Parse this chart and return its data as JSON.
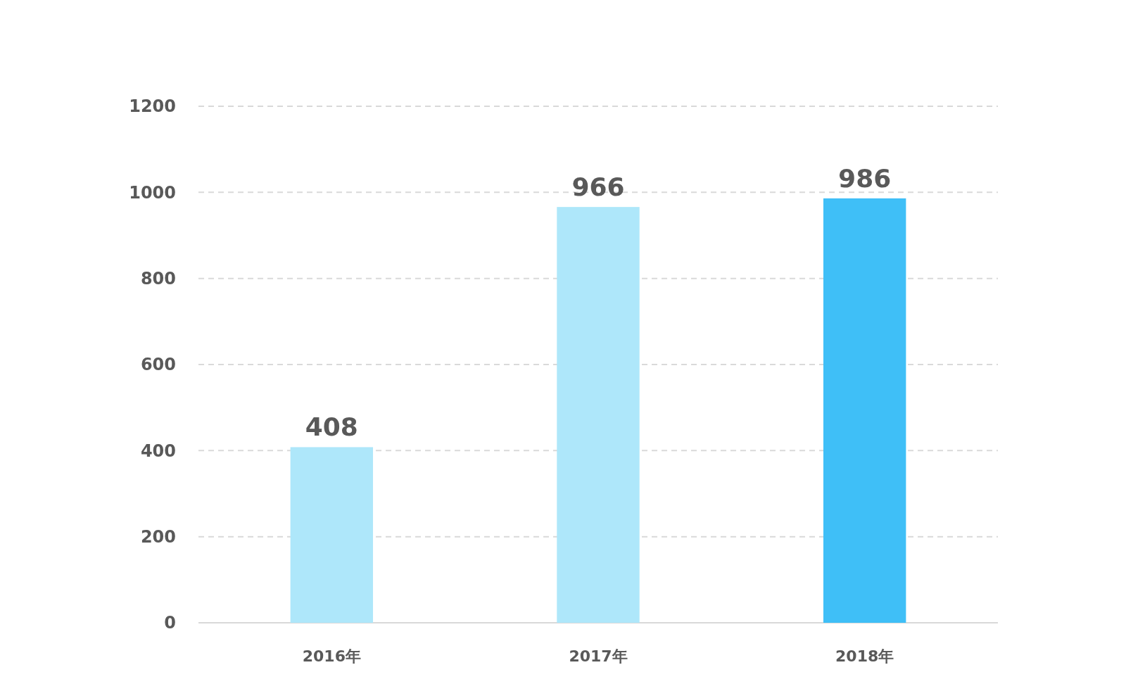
{
  "chart_data": {
    "type": "bar",
    "categories": [
      "2016年",
      "2017年",
      "2018年"
    ],
    "values": [
      408,
      966,
      986
    ],
    "colors": [
      "#aee7fa",
      "#aee7fa",
      "#3fbff7"
    ],
    "ylim": [
      0,
      1200
    ],
    "yticks": [
      0,
      200,
      400,
      600,
      800,
      1000,
      1200
    ],
    "grid": "y",
    "data_labels": true
  }
}
